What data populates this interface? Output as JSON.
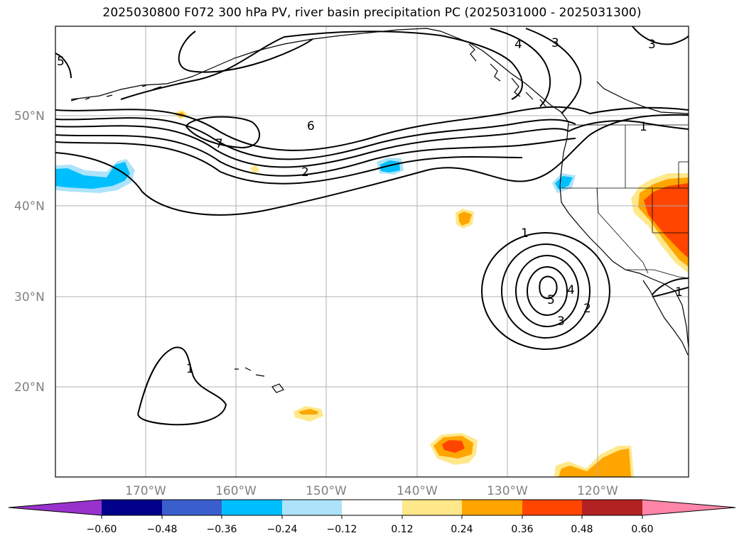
{
  "title": "2025030800 F072 300 hPa PV, river basin precipitation PC (2025031000 - 2025031300)",
  "latitude_labels": [
    "50°N",
    "40°N",
    "30°N",
    "20°N"
  ],
  "longitude_labels": [
    "170°W",
    "160°W",
    "150°W",
    "140°W",
    "130°W",
    "120°W"
  ],
  "colorbar": {
    "tick_labels": [
      "−0.60",
      "−0.48",
      "−0.36",
      "−0.24",
      "−0.12",
      "0.12",
      "0.24",
      "0.36",
      "0.48",
      "0.60"
    ],
    "colors": [
      "#9932CC",
      "#00008B",
      "#3A5FCD",
      "#00BFFF",
      "#ADE3FA",
      "#FFFFFF",
      "#FFE88A",
      "#FFA500",
      "#FF4500",
      "#B22222",
      "#FF86A8"
    ]
  },
  "contour_labels": {
    "pv_7": "7",
    "pv_6": "6",
    "pv_2": "2",
    "pv_4_north": "4",
    "pv_3_north": "3",
    "pv_3_ne": "3",
    "pv_5_west": "5",
    "pv_1_coast": "1",
    "low_1": "1",
    "low_2": "2",
    "low_3": "3",
    "low_4": "4",
    "low_5": "5",
    "south_1": "1",
    "baja_1": "1"
  }
}
